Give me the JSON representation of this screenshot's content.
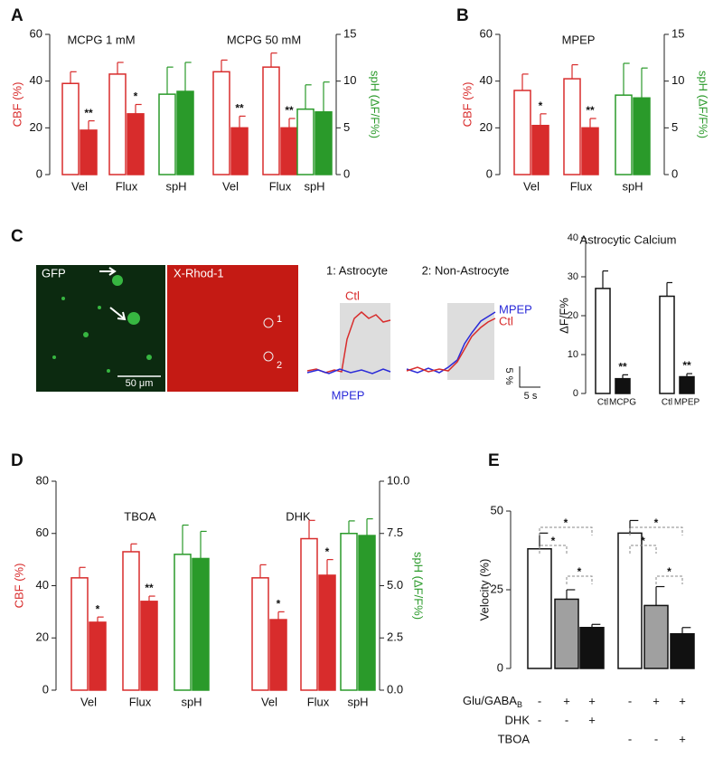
{
  "chart_data": [
    {
      "type": "bar",
      "panel": "A",
      "group_labels": [
        "MCPG 1 mM",
        "MCPG 50 mM"
      ],
      "ylabel": "CBF (%)",
      "y2label": "spH (ΔF/F%)",
      "ylim": [
        0,
        60
      ],
      "yticks": [
        0,
        20,
        40,
        60
      ],
      "y2lim": [
        0,
        15
      ],
      "y2ticks": [
        0,
        5,
        10,
        15
      ],
      "categories": [
        "Vel",
        "Flux",
        "spH",
        "Vel",
        "Flux",
        "spH"
      ],
      "series": [
        {
          "style": "open",
          "color": "#d82c2c",
          "values": [
            39,
            43,
            null,
            44,
            46,
            null
          ],
          "errors": [
            5,
            5,
            null,
            5,
            6,
            null
          ]
        },
        {
          "style": "filled",
          "color": "#d82c2c",
          "values": [
            19,
            26,
            null,
            20,
            20,
            null
          ],
          "errors": [
            4,
            4,
            null,
            5,
            4,
            null
          ],
          "significance": [
            "**",
            "*",
            null,
            "**",
            "**",
            null
          ]
        },
        {
          "style": "open",
          "color": "#2a9a2a",
          "axis": "y2",
          "values": [
            null,
            null,
            8.6,
            null,
            null,
            7
          ],
          "errors": [
            null,
            null,
            2.9,
            null,
            null,
            2.6
          ]
        },
        {
          "style": "filled",
          "color": "#2a9a2a",
          "axis": "y2",
          "values": [
            null,
            null,
            8.9,
            null,
            null,
            6.7
          ],
          "errors": [
            null,
            null,
            3.1,
            null,
            null,
            3.2
          ]
        }
      ]
    },
    {
      "type": "bar",
      "panel": "B",
      "group_labels": [
        "MPEP"
      ],
      "ylabel": "CBF (%)",
      "y2label": "spH (ΔF/F%)",
      "ylim": [
        0,
        60
      ],
      "yticks": [
        0,
        20,
        40,
        60
      ],
      "y2lim": [
        0,
        15
      ],
      "y2ticks": [
        0,
        5,
        10,
        15
      ],
      "categories": [
        "Vel",
        "Flux",
        "spH"
      ],
      "series": [
        {
          "style": "open",
          "color": "#d82c2c",
          "values": [
            36,
            41,
            null
          ],
          "errors": [
            7,
            6,
            null
          ]
        },
        {
          "style": "filled",
          "color": "#d82c2c",
          "values": [
            21,
            20,
            null
          ],
          "errors": [
            5,
            4,
            null
          ],
          "significance": [
            "*",
            "**",
            null
          ]
        },
        {
          "style": "open",
          "color": "#2a9a2a",
          "axis": "y2",
          "values": [
            null,
            null,
            8.5
          ],
          "errors": [
            null,
            null,
            3.4
          ]
        },
        {
          "style": "filled",
          "color": "#2a9a2a",
          "axis": "y2",
          "values": [
            null,
            null,
            8.2
          ],
          "errors": [
            null,
            null,
            3.2
          ]
        }
      ]
    },
    {
      "type": "bar",
      "title": "Astrocytic Calcium",
      "ylabel": "ΔF/F%",
      "ylim": [
        0,
        40
      ],
      "yticks": [
        0,
        10,
        20,
        30,
        40
      ],
      "categories": [
        "Ctl",
        "MCPG",
        "Ctl",
        "MPEP"
      ],
      "series": [
        {
          "style": "open",
          "color": "#111111",
          "values": [
            27,
            null,
            25,
            null
          ],
          "errors": [
            4.5,
            null,
            3.5,
            null
          ]
        },
        {
          "style": "filled",
          "color": "#111111",
          "values": [
            null,
            3.8,
            null,
            4.3
          ],
          "errors": [
            null,
            1,
            null,
            0.8
          ],
          "significance": [
            null,
            "**",
            null,
            "**"
          ]
        }
      ]
    },
    {
      "type": "bar",
      "panel": "D",
      "group_labels": [
        "TBOA",
        "DHK"
      ],
      "ylabel": "CBF (%)",
      "y2label": "spH (ΔF/F%)",
      "ylim": [
        0,
        80
      ],
      "yticks": [
        0,
        20,
        40,
        60,
        80
      ],
      "y2lim": [
        0,
        10
      ],
      "y2ticks": [
        {
          "value": 0,
          "label": "0.0"
        },
        {
          "value": 2.5,
          "label": "2.5"
        },
        {
          "value": 5,
          "label": "5.0"
        },
        {
          "value": 7.5,
          "label": "7.5"
        },
        {
          "value": 10,
          "label": "10.0"
        }
      ],
      "categories": [
        "Vel",
        "Flux",
        "spH",
        "Vel",
        "Flux",
        "spH"
      ],
      "series": [
        {
          "style": "open",
          "color": "#d82c2c",
          "values": [
            43,
            53,
            null,
            43,
            58,
            null
          ],
          "errors": [
            4,
            3,
            null,
            5,
            7,
            null
          ]
        },
        {
          "style": "filled",
          "color": "#d82c2c",
          "values": [
            26,
            34,
            null,
            27,
            44,
            null
          ],
          "errors": [
            2,
            2,
            null,
            3,
            6,
            null
          ],
          "significance": [
            "*",
            "**",
            null,
            "*",
            "*",
            null
          ]
        },
        {
          "style": "open",
          "color": "#2a9a2a",
          "axis": "y2",
          "values": [
            null,
            null,
            6.5,
            null,
            null,
            7.5
          ],
          "errors": [
            null,
            null,
            1.4,
            null,
            null,
            0.6
          ]
        },
        {
          "style": "filled",
          "color": "#2a9a2a",
          "axis": "y2",
          "values": [
            null,
            null,
            6.3,
            null,
            null,
            7.4
          ],
          "errors": [
            null,
            null,
            1.3,
            null,
            null,
            0.8
          ]
        }
      ]
    },
    {
      "type": "bar",
      "panel": "E",
      "ylabel": "Velocity (%)",
      "ylim": [
        0,
        50
      ],
      "yticks": [
        0,
        25,
        50
      ],
      "categories": [
        null,
        null,
        null,
        null,
        null,
        null
      ],
      "series": [
        {
          "style": "filled",
          "color": "#ffffff",
          "edgecolor": "#111111",
          "values": [
            38,
            null,
            null,
            43,
            null,
            null
          ],
          "errors": [
            5,
            null,
            null,
            4,
            null,
            null
          ]
        },
        {
          "style": "filled",
          "color": "#a0a0a0",
          "edgecolor": "#111111",
          "values": [
            null,
            22,
            null,
            null,
            20,
            null
          ],
          "errors": [
            null,
            3,
            null,
            null,
            6,
            null
          ]
        },
        {
          "style": "filled",
          "color": "#111111",
          "edgecolor": "#111111",
          "values": [
            null,
            null,
            13,
            null,
            null,
            11
          ],
          "errors": [
            null,
            null,
            1,
            null,
            null,
            2
          ]
        }
      ],
      "comparisons": [
        [
          "*",
          "*",
          "*"
        ],
        [
          "*",
          "*",
          "*"
        ]
      ],
      "conditions": [
        {
          "label": "Glu/GABA",
          "label_subscript": "B",
          "marks": [
            "-",
            "+",
            "+",
            "-",
            "+",
            "+"
          ]
        },
        {
          "label": "DHK",
          "marks": [
            "-",
            "-",
            "+",
            null,
            null,
            null
          ]
        },
        {
          "label": "TBOA",
          "marks": [
            null,
            null,
            null,
            "-",
            "-",
            "+"
          ]
        }
      ]
    }
  ],
  "panel_c": {
    "panel": "C",
    "image_1_label": "GFP",
    "scale_bar": "50 μm",
    "image_2_label": "X-Rhod-1",
    "roi_1": "1",
    "roi_2": "2",
    "trace_1_title": "1: Astrocyte",
    "trace_1_ctl": "Ctl",
    "trace_1_drug": "MPEP",
    "trace_2_title": "2: Non-Astrocyte",
    "trace_2_drug": "MPEP",
    "trace_2_ctl": "Ctl",
    "scale_y": "5 %",
    "scale_x": "5 s"
  }
}
